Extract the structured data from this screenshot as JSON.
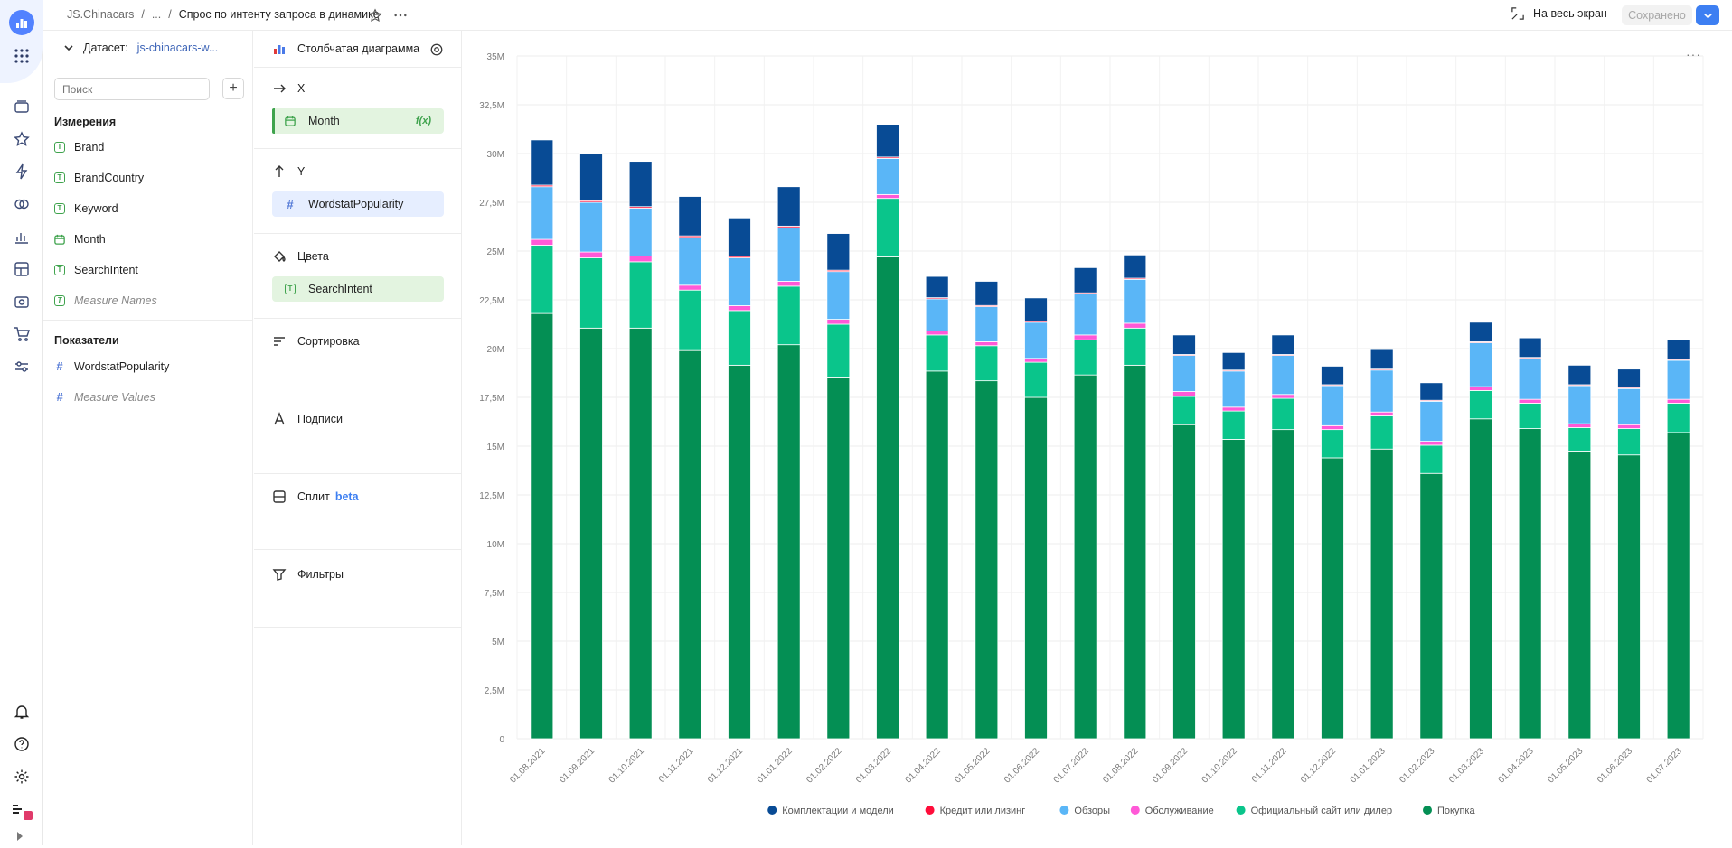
{
  "app": {
    "breadcrumbs": [
      "JS.Chinacars",
      "...",
      "Спрос по интенту запроса в динамике"
    ],
    "fullscreen_label": "На весь экран",
    "saved_label": "Сохранено",
    "accent": "#3d7ff2"
  },
  "dataset": {
    "label": "Датасет:",
    "name": "js-chinacars-w...",
    "search_placeholder": "Поиск",
    "dimensions_title": "Измерения",
    "dimensions": [
      "Brand",
      "BrandCountry",
      "Keyword",
      "Month",
      "SearchIntent",
      "Measure Names"
    ],
    "measures_title": "Показатели",
    "measures": [
      "WordstatPopularity",
      "Measure Values"
    ]
  },
  "wizard": {
    "chart_type": "Столбчатая диаграмма",
    "x_label": "X",
    "x_field": "Month",
    "y_label": "Y",
    "y_field": "WordstatPopularity",
    "colors_label": "Цвета",
    "colors_field": "SearchIntent",
    "sort_label": "Сортировка",
    "labels_label": "Подписи",
    "split_label": "Сплит",
    "split_badge": "beta",
    "filters_label": "Фильтры"
  },
  "chart_data": {
    "type": "bar",
    "stacked": true,
    "title": "",
    "xlabel": "",
    "ylabel": "",
    "ylim": [
      0,
      35000000
    ],
    "yticks": [
      "0",
      "2,5M",
      "5M",
      "7,5M",
      "10M",
      "12,5M",
      "15M",
      "17,5M",
      "20M",
      "22,5M",
      "25M",
      "27,5M",
      "30M",
      "32,5M",
      "35M"
    ],
    "categories": [
      "01.08.2021",
      "01.09.2021",
      "01.10.2021",
      "01.11.2021",
      "01.12.2021",
      "01.01.2022",
      "01.02.2022",
      "01.03.2022",
      "01.04.2022",
      "01.05.2022",
      "01.06.2022",
      "01.07.2022",
      "01.08.2022",
      "01.09.2022",
      "01.10.2022",
      "01.11.2022",
      "01.12.2022",
      "01.01.2023",
      "01.02.2023",
      "01.03.2023",
      "01.04.2023",
      "01.05.2023",
      "01.06.2023",
      "01.07.2023"
    ],
    "series": [
      {
        "name": "Покупка",
        "color": "#048f54",
        "values": [
          21.8,
          21.05,
          21.05,
          19.9,
          19.15,
          20.2,
          18.5,
          24.7,
          18.85,
          18.35,
          17.5,
          18.65,
          19.15,
          16.1,
          15.35,
          15.85,
          14.4,
          14.85,
          13.6,
          16.4,
          15.9,
          14.75,
          14.55,
          15.7
        ]
      },
      {
        "name": "Официальный сайт или дилер",
        "color": "#0ac58b",
        "values": [
          3.5,
          3.6,
          3.4,
          3.1,
          2.8,
          3.0,
          2.75,
          3.0,
          1.85,
          1.8,
          1.8,
          1.8,
          1.9,
          1.45,
          1.45,
          1.6,
          1.45,
          1.7,
          1.45,
          1.45,
          1.3,
          1.2,
          1.35,
          1.5
        ]
      },
      {
        "name": "Обслуживание",
        "color": "#ff59d7",
        "values": [
          0.3,
          0.3,
          0.3,
          0.25,
          0.25,
          0.25,
          0.25,
          0.2,
          0.2,
          0.2,
          0.2,
          0.25,
          0.25,
          0.25,
          0.2,
          0.2,
          0.2,
          0.2,
          0.2,
          0.2,
          0.2,
          0.2,
          0.2,
          0.2
        ]
      },
      {
        "name": "Обзоры",
        "color": "#5ab6f7",
        "values": [
          2.7,
          2.55,
          2.45,
          2.45,
          2.45,
          2.75,
          2.45,
          1.85,
          1.65,
          1.8,
          1.85,
          2.1,
          2.25,
          1.85,
          1.85,
          2.0,
          2.05,
          2.15,
          2.05,
          2.25,
          2.1,
          1.95,
          1.85,
          2.0
        ]
      },
      {
        "name": "Кредит или лизинг",
        "color": "#ff0d3a",
        "values": [
          0.08,
          0.08,
          0.08,
          0.08,
          0.08,
          0.08,
          0.07,
          0.07,
          0.06,
          0.06,
          0.06,
          0.06,
          0.06,
          0.05,
          0.05,
          0.05,
          0.05,
          0.05,
          0.05,
          0.05,
          0.05,
          0.05,
          0.05,
          0.05
        ]
      },
      {
        "name": "Комплектации и модели",
        "color": "#084b95",
        "values": [
          2.32,
          2.42,
          2.32,
          2.02,
          1.97,
          2.02,
          1.88,
          1.68,
          1.09,
          1.24,
          1.19,
          1.29,
          1.19,
          1.0,
          0.9,
          1.0,
          0.95,
          1.0,
          0.9,
          1.0,
          1.0,
          1.0,
          0.95,
          1.0
        ]
      }
    ],
    "value_unit": "millions",
    "legend_order": [
      "Комплектации и модели",
      "Кредит или лизинг",
      "Обзоры",
      "Обслуживание",
      "Официальный сайт или дилер",
      "Покупка"
    ],
    "legend_position": "bottom-center"
  }
}
